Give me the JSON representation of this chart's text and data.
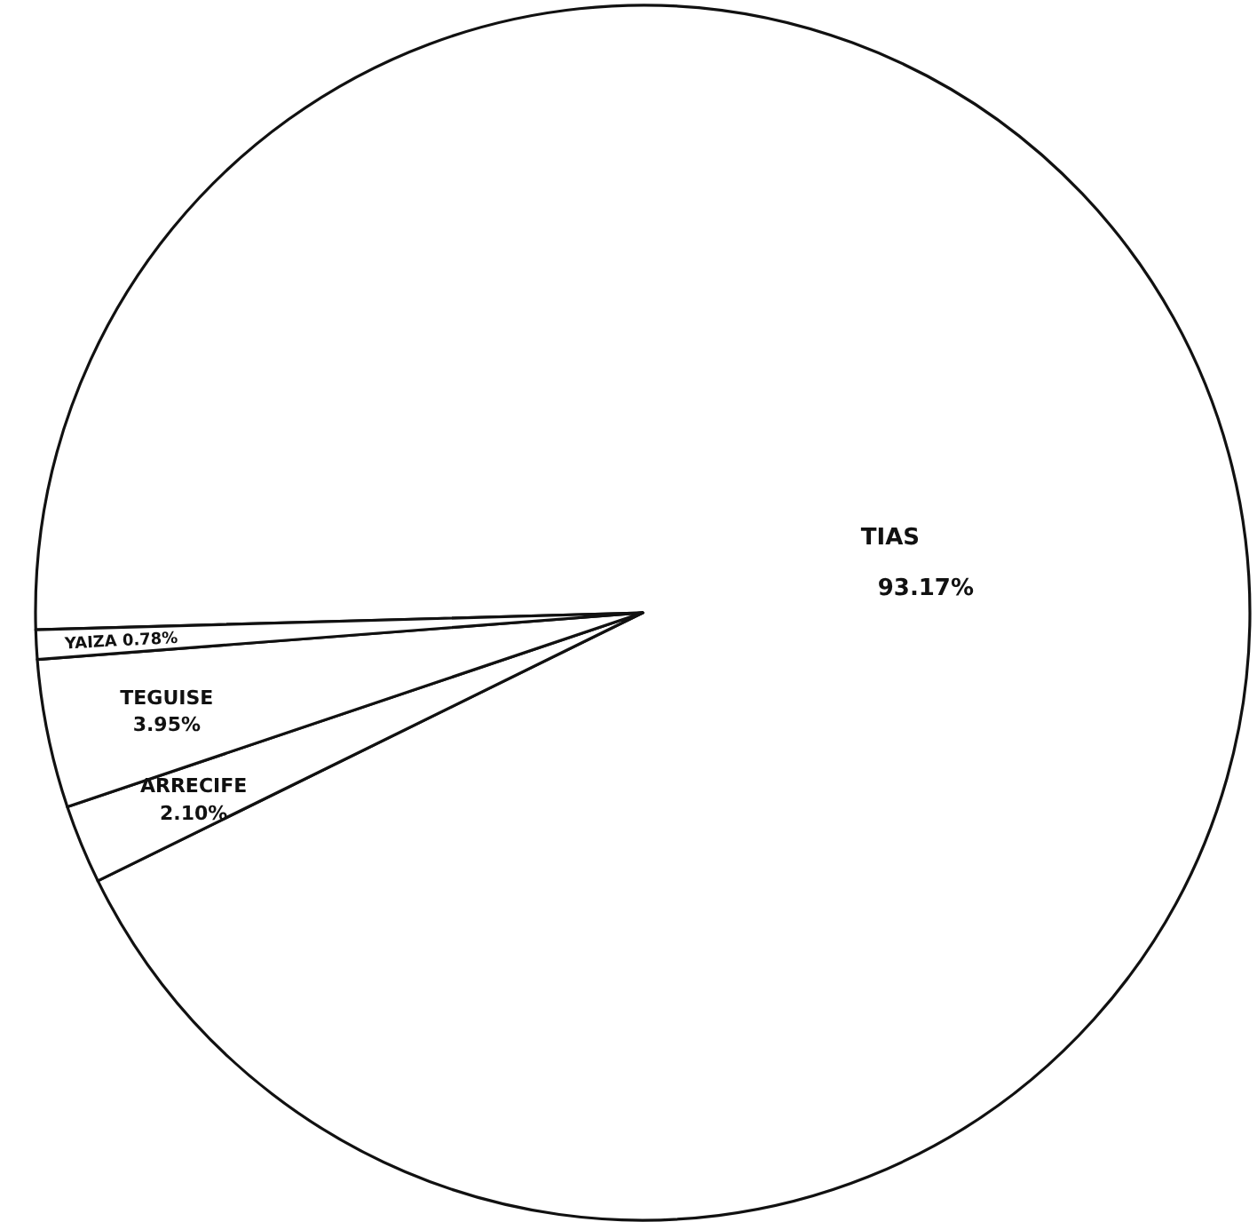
{
  "chart_data": {
    "type": "pie",
    "categories": [
      "TIAS",
      "ARRECIFE",
      "TEGUISE",
      "YAIZA"
    ],
    "values": [
      93.17,
      2.1,
      3.95,
      0.78
    ],
    "colors": [
      "#ffffff",
      "#ffffff",
      "#ffffff",
      "#ffffff"
    ],
    "value_labels": [
      "93.17%",
      "2.10%",
      "3.95%",
      "0.78%"
    ]
  }
}
